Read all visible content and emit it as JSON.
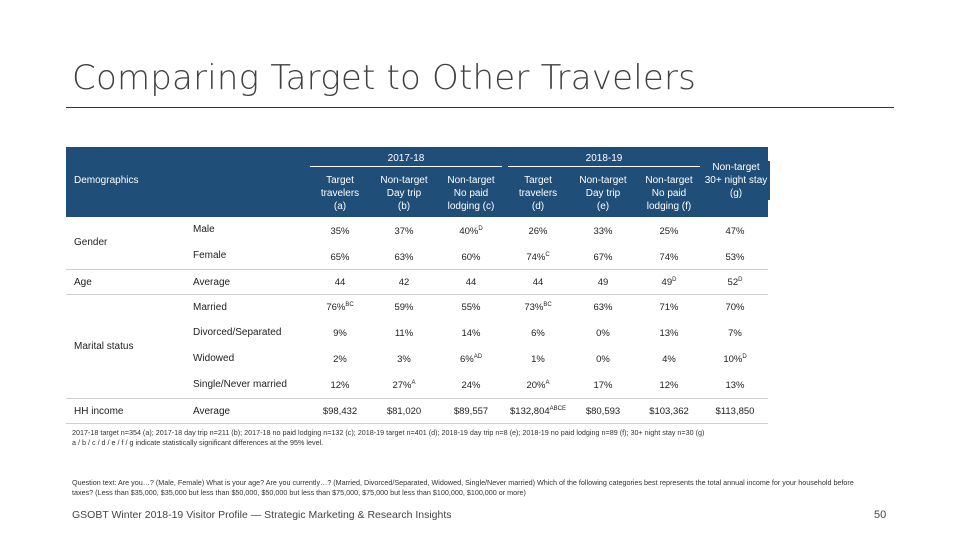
{
  "title": "Comparing Target to Other Travelers",
  "years": {
    "y1": "2017-18",
    "y2": "2018-19"
  },
  "demographics_label": "Demographics",
  "columns": [
    {
      "l1": "Target",
      "l2": "travelers",
      "l3": "(a)"
    },
    {
      "l1": "Non-target",
      "l2": "Day trip",
      "l3": "(b)"
    },
    {
      "l1": "Non-target",
      "l2": "No paid",
      "l3": "lodging (c)"
    },
    {
      "l1": "Target",
      "l2": "travelers",
      "l3": "(d)"
    },
    {
      "l1": "Non-target",
      "l2": "Day trip",
      "l3": "(e)"
    },
    {
      "l1": "Non-target",
      "l2": "No paid",
      "l3": "lodging (f)"
    },
    {
      "l1": "Non-target",
      "l2": "30+ night stay",
      "l3": "(g)"
    }
  ],
  "categories": {
    "gender": "Gender",
    "age": "Age",
    "marital": "Marital status",
    "income": "HH income"
  },
  "rows": [
    {
      "label": "Male",
      "values": [
        "35%",
        "37%",
        "40%",
        "26%",
        "33%",
        "25%",
        "47%"
      ],
      "sups": [
        "",
        "",
        "D",
        "",
        "",
        "",
        ""
      ]
    },
    {
      "label": "Female",
      "values": [
        "65%",
        "63%",
        "60%",
        "74%",
        "67%",
        "74%",
        "53%"
      ],
      "sups": [
        "",
        "",
        "",
        "C",
        "",
        "",
        ""
      ]
    },
    {
      "label": "Average",
      "values": [
        "44",
        "42",
        "44",
        "44",
        "49",
        "49",
        "52"
      ],
      "sups": [
        "",
        "",
        "",
        "",
        "",
        "D",
        "D"
      ]
    },
    {
      "label": "Married",
      "values": [
        "76%",
        "59%",
        "55%",
        "73%",
        "63%",
        "71%",
        "70%"
      ],
      "sups": [
        "BC",
        "",
        "",
        "BC",
        "",
        "",
        ""
      ]
    },
    {
      "label": "Divorced/Separated",
      "values": [
        "9%",
        "11%",
        "14%",
        "6%",
        "0%",
        "13%",
        "7%"
      ],
      "sups": [
        "",
        "",
        "",
        "",
        "",
        "",
        ""
      ]
    },
    {
      "label": "Widowed",
      "values": [
        "2%",
        "3%",
        "6%",
        "1%",
        "0%",
        "4%",
        "10%"
      ],
      "sups": [
        "",
        "",
        "AD",
        "",
        "",
        "",
        "D"
      ]
    },
    {
      "label": "Single/Never married",
      "values": [
        "12%",
        "27%",
        "24%",
        "20%",
        "17%",
        "12%",
        "13%"
      ],
      "sups": [
        "",
        "A",
        "",
        "A",
        "",
        "",
        ""
      ]
    },
    {
      "label": "Average",
      "values": [
        "$98,432",
        "$81,020",
        "$89,557",
        "$132,804",
        "$80,593",
        "$103,362",
        "$113,850"
      ],
      "sups": [
        "",
        "",
        "",
        "ABCE",
        "",
        "",
        ""
      ]
    }
  ],
  "footnote1": "2017-18 target n=354 (a); 2017-18 day trip n=211 (b); 2017-18 no paid lodging n=132 (c); 2018-19 target n=401 (d); 2018-19 day trip n=8 (e); 2018-19 no paid lodging n=89 (f); 30+ night stay n=30 (g)",
  "footnote2": "a / b / c / d / e / f / g indicate statistically significant differences at the 95% level.",
  "question_text": "Question text: Are you…? (Male, Female) What is your age? Are you currently…? (Married, Divorced/Separated, Widowed, Single/Never married) Which of the following categories best represents the total annual income for your household before taxes? (Less than $35,000, $35,000 but less than $50,000, $50,000 but less than $75,000, $75,000 but less than $100,000, $100,000 or more)",
  "footer": "GSOBT Winter 2018-19 Visitor Profile — Strategic Marketing & Research Insights",
  "page_number": "50",
  "colors": {
    "header_band": "#1f4e79",
    "title": "#404040",
    "rule": "#1f3a5f"
  }
}
